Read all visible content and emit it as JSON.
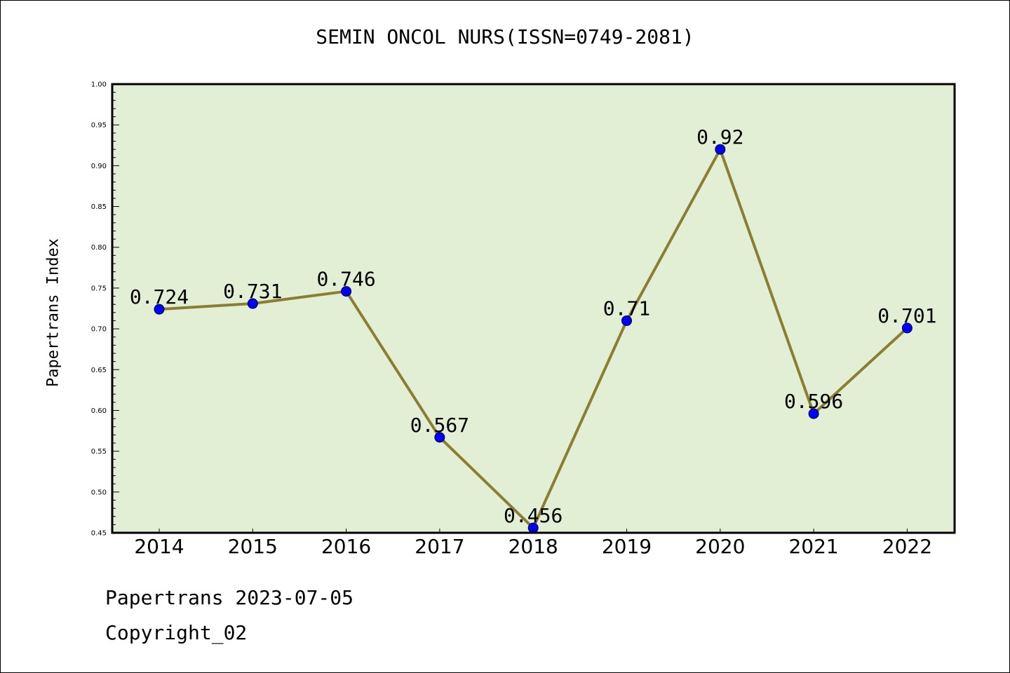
{
  "title": "SEMIN ONCOL NURS(ISSN=0749-2081)",
  "footer": {
    "line1": "Papertrans 2023-07-05",
    "line2": "Copyright_02"
  },
  "colors": {
    "plot_bg": "#e2efd4",
    "line": "#8b7d32",
    "marker": "#0000ff"
  },
  "chart_data": {
    "type": "line",
    "title": "SEMIN ONCOL NURS(ISSN=0749-2081)",
    "xlabel": "",
    "ylabel": "Papertrans Index",
    "categories": [
      "2014",
      "2015",
      "2016",
      "2017",
      "2018",
      "2019",
      "2020",
      "2021",
      "2022"
    ],
    "values": [
      0.724,
      0.731,
      0.746,
      0.567,
      0.456,
      0.71,
      0.92,
      0.596,
      0.701
    ],
    "data_labels": [
      "0.724",
      "0.731",
      "0.746",
      "0.567",
      "0.456",
      "0.71",
      "0.92",
      "0.596",
      "0.701"
    ],
    "ylim": [
      0.45,
      1.0
    ],
    "yticks": [
      "0.45",
      "0.50",
      "0.55",
      "0.60",
      "0.65",
      "0.70",
      "0.75",
      "0.80",
      "0.85",
      "0.90",
      "0.95",
      "1.00"
    ],
    "grid": false,
    "legend": "none"
  }
}
